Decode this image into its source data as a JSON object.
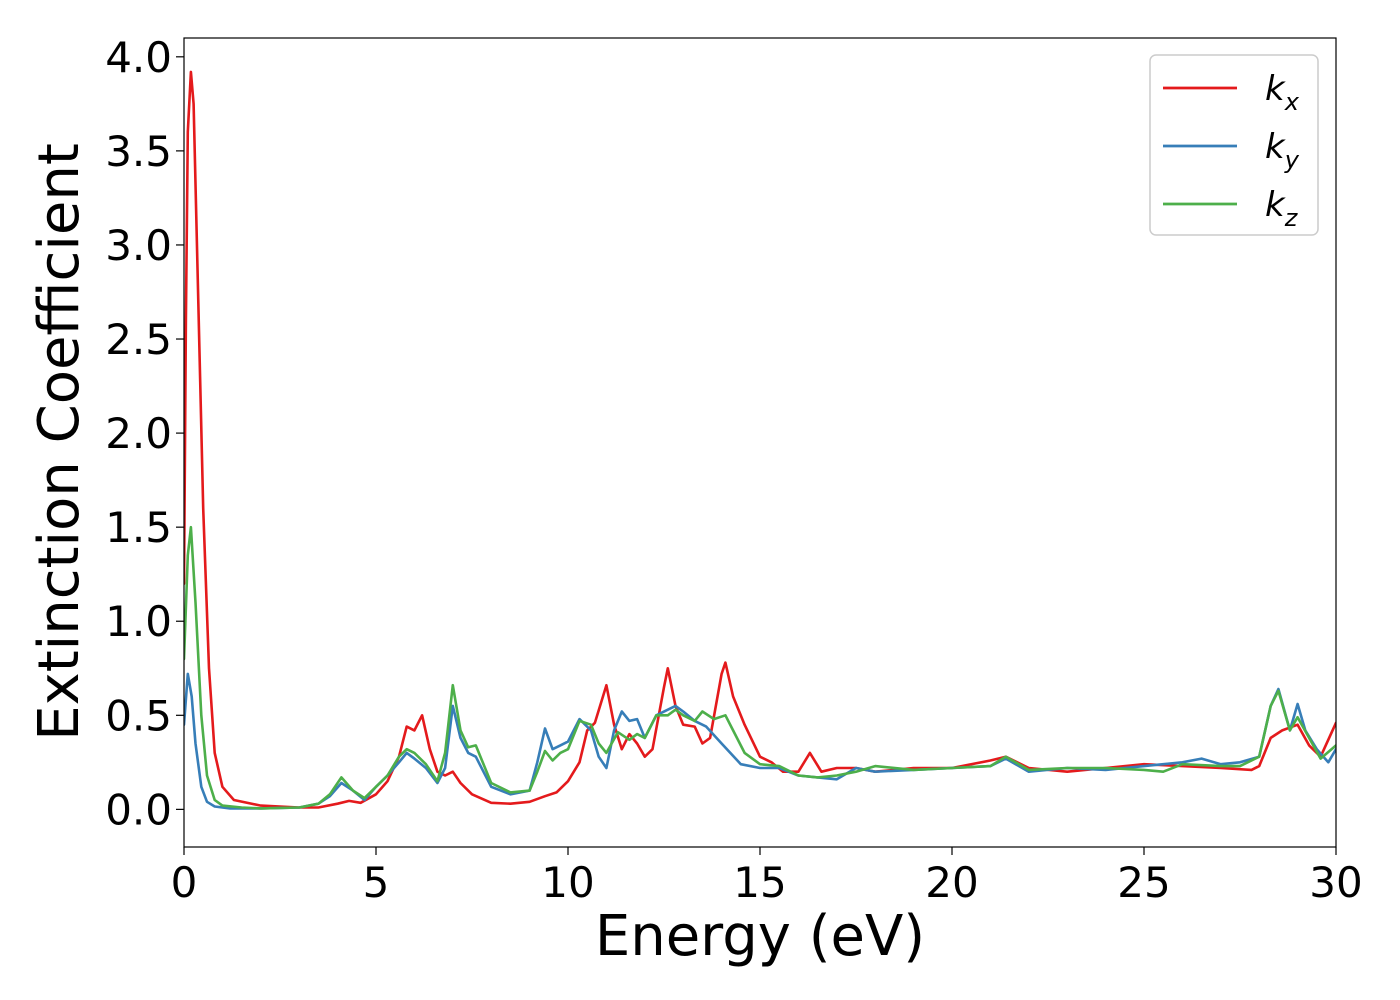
{
  "chart_data": {
    "type": "line",
    "title": "",
    "xlabel": "Energy (eV)",
    "ylabel": "Extinction Coefficient",
    "xlim": [
      0,
      30
    ],
    "ylim": [
      -0.2,
      4.1
    ],
    "xticks": [
      0,
      5,
      10,
      15,
      20,
      25,
      30
    ],
    "xtick_labels": [
      "0",
      "5",
      "10",
      "15",
      "20",
      "25",
      "30"
    ],
    "yticks": [
      0.0,
      0.5,
      1.0,
      1.5,
      2.0,
      2.5,
      3.0,
      3.5,
      4.0
    ],
    "ytick_labels": [
      "0.0",
      "0.5",
      "1.0",
      "1.5",
      "2.0",
      "2.5",
      "3.0",
      "3.5",
      "4.0"
    ],
    "grid": false,
    "legend_position": "top-right",
    "series": [
      {
        "name": "k",
        "subscript": "x",
        "color": "#e41a1c",
        "points": [
          [
            0,
            1.2
          ],
          [
            0.05,
            2.6
          ],
          [
            0.1,
            3.6
          ],
          [
            0.18,
            3.92
          ],
          [
            0.25,
            3.75
          ],
          [
            0.35,
            2.9
          ],
          [
            0.5,
            1.6
          ],
          [
            0.65,
            0.75
          ],
          [
            0.8,
            0.3
          ],
          [
            1.0,
            0.12
          ],
          [
            1.3,
            0.05
          ],
          [
            2.0,
            0.02
          ],
          [
            3.0,
            0.01
          ],
          [
            3.5,
            0.01
          ],
          [
            4.0,
            0.03
          ],
          [
            4.3,
            0.045
          ],
          [
            4.6,
            0.035
          ],
          [
            5.0,
            0.08
          ],
          [
            5.3,
            0.15
          ],
          [
            5.6,
            0.28
          ],
          [
            5.8,
            0.44
          ],
          [
            6.0,
            0.42
          ],
          [
            6.2,
            0.5
          ],
          [
            6.4,
            0.32
          ],
          [
            6.6,
            0.2
          ],
          [
            6.8,
            0.18
          ],
          [
            7.0,
            0.2
          ],
          [
            7.2,
            0.14
          ],
          [
            7.5,
            0.08
          ],
          [
            8.0,
            0.035
          ],
          [
            8.5,
            0.03
          ],
          [
            9.0,
            0.04
          ],
          [
            9.4,
            0.07
          ],
          [
            9.7,
            0.09
          ],
          [
            10.0,
            0.15
          ],
          [
            10.3,
            0.25
          ],
          [
            10.5,
            0.42
          ],
          [
            10.7,
            0.46
          ],
          [
            11.0,
            0.66
          ],
          [
            11.2,
            0.45
          ],
          [
            11.4,
            0.32
          ],
          [
            11.6,
            0.4
          ],
          [
            11.8,
            0.35
          ],
          [
            12.0,
            0.28
          ],
          [
            12.2,
            0.32
          ],
          [
            12.5,
            0.65
          ],
          [
            12.6,
            0.75
          ],
          [
            12.8,
            0.55
          ],
          [
            13.0,
            0.45
          ],
          [
            13.3,
            0.44
          ],
          [
            13.5,
            0.35
          ],
          [
            13.7,
            0.38
          ],
          [
            14.0,
            0.72
          ],
          [
            14.1,
            0.78
          ],
          [
            14.3,
            0.6
          ],
          [
            14.6,
            0.45
          ],
          [
            15.0,
            0.28
          ],
          [
            15.3,
            0.25
          ],
          [
            15.6,
            0.2
          ],
          [
            16.0,
            0.2
          ],
          [
            16.3,
            0.3
          ],
          [
            16.6,
            0.2
          ],
          [
            17.0,
            0.22
          ],
          [
            17.5,
            0.22
          ],
          [
            18.0,
            0.2
          ],
          [
            19.0,
            0.22
          ],
          [
            20.0,
            0.22
          ],
          [
            21.0,
            0.26
          ],
          [
            21.4,
            0.28
          ],
          [
            22.0,
            0.22
          ],
          [
            23.0,
            0.2
          ],
          [
            24.0,
            0.22
          ],
          [
            25.0,
            0.24
          ],
          [
            26.0,
            0.23
          ],
          [
            27.0,
            0.22
          ],
          [
            27.8,
            0.21
          ],
          [
            28.0,
            0.23
          ],
          [
            28.3,
            0.38
          ],
          [
            28.6,
            0.42
          ],
          [
            29.0,
            0.45
          ],
          [
            29.3,
            0.34
          ],
          [
            29.6,
            0.28
          ],
          [
            30.0,
            0.46
          ]
        ]
      },
      {
        "name": "k",
        "subscript": "y",
        "color": "#377eb8",
        "points": [
          [
            0,
            0.45
          ],
          [
            0.1,
            0.72
          ],
          [
            0.2,
            0.6
          ],
          [
            0.3,
            0.35
          ],
          [
            0.45,
            0.12
          ],
          [
            0.6,
            0.04
          ],
          [
            0.8,
            0.015
          ],
          [
            1.2,
            0.005
          ],
          [
            2.0,
            0.005
          ],
          [
            3.0,
            0.01
          ],
          [
            3.5,
            0.03
          ],
          [
            3.8,
            0.07
          ],
          [
            4.1,
            0.14
          ],
          [
            4.4,
            0.1
          ],
          [
            4.7,
            0.05
          ],
          [
            5.0,
            0.12
          ],
          [
            5.3,
            0.18
          ],
          [
            5.6,
            0.25
          ],
          [
            5.8,
            0.3
          ],
          [
            6.0,
            0.27
          ],
          [
            6.3,
            0.22
          ],
          [
            6.6,
            0.14
          ],
          [
            6.8,
            0.22
          ],
          [
            7.0,
            0.55
          ],
          [
            7.2,
            0.38
          ],
          [
            7.4,
            0.3
          ],
          [
            7.6,
            0.28
          ],
          [
            8.0,
            0.12
          ],
          [
            8.5,
            0.08
          ],
          [
            9.0,
            0.1
          ],
          [
            9.2,
            0.25
          ],
          [
            9.4,
            0.43
          ],
          [
            9.6,
            0.32
          ],
          [
            9.8,
            0.34
          ],
          [
            10.0,
            0.36
          ],
          [
            10.3,
            0.48
          ],
          [
            10.6,
            0.42
          ],
          [
            10.8,
            0.28
          ],
          [
            11.0,
            0.22
          ],
          [
            11.2,
            0.42
          ],
          [
            11.4,
            0.52
          ],
          [
            11.6,
            0.47
          ],
          [
            11.8,
            0.48
          ],
          [
            12.0,
            0.38
          ],
          [
            12.3,
            0.5
          ],
          [
            12.6,
            0.53
          ],
          [
            12.8,
            0.55
          ],
          [
            13.0,
            0.52
          ],
          [
            13.3,
            0.47
          ],
          [
            13.6,
            0.44
          ],
          [
            14.0,
            0.35
          ],
          [
            14.5,
            0.24
          ],
          [
            15.0,
            0.22
          ],
          [
            15.5,
            0.22
          ],
          [
            16.0,
            0.18
          ],
          [
            16.5,
            0.17
          ],
          [
            17.0,
            0.16
          ],
          [
            17.5,
            0.22
          ],
          [
            18.0,
            0.2
          ],
          [
            19.0,
            0.21
          ],
          [
            20.0,
            0.22
          ],
          [
            21.0,
            0.23
          ],
          [
            21.4,
            0.27
          ],
          [
            22.0,
            0.2
          ],
          [
            23.0,
            0.22
          ],
          [
            24.0,
            0.21
          ],
          [
            25.0,
            0.23
          ],
          [
            26.0,
            0.25
          ],
          [
            26.5,
            0.27
          ],
          [
            27.0,
            0.24
          ],
          [
            27.5,
            0.25
          ],
          [
            28.0,
            0.28
          ],
          [
            28.3,
            0.55
          ],
          [
            28.5,
            0.64
          ],
          [
            28.8,
            0.42
          ],
          [
            29.0,
            0.56
          ],
          [
            29.2,
            0.42
          ],
          [
            29.5,
            0.32
          ],
          [
            29.8,
            0.25
          ],
          [
            30.0,
            0.32
          ]
        ]
      },
      {
        "name": "k",
        "subscript": "z",
        "color": "#4daf4a",
        "points": [
          [
            0,
            0.8
          ],
          [
            0.1,
            1.35
          ],
          [
            0.18,
            1.5
          ],
          [
            0.3,
            1.1
          ],
          [
            0.45,
            0.5
          ],
          [
            0.6,
            0.18
          ],
          [
            0.8,
            0.05
          ],
          [
            1.0,
            0.02
          ],
          [
            1.5,
            0.01
          ],
          [
            2.0,
            0.005
          ],
          [
            3.0,
            0.01
          ],
          [
            3.5,
            0.03
          ],
          [
            3.8,
            0.08
          ],
          [
            4.1,
            0.17
          ],
          [
            4.4,
            0.1
          ],
          [
            4.7,
            0.06
          ],
          [
            5.0,
            0.12
          ],
          [
            5.3,
            0.18
          ],
          [
            5.6,
            0.28
          ],
          [
            5.8,
            0.32
          ],
          [
            6.0,
            0.3
          ],
          [
            6.3,
            0.24
          ],
          [
            6.6,
            0.15
          ],
          [
            6.8,
            0.3
          ],
          [
            7.0,
            0.66
          ],
          [
            7.2,
            0.42
          ],
          [
            7.4,
            0.33
          ],
          [
            7.6,
            0.34
          ],
          [
            8.0,
            0.14
          ],
          [
            8.5,
            0.09
          ],
          [
            9.0,
            0.1
          ],
          [
            9.2,
            0.2
          ],
          [
            9.4,
            0.31
          ],
          [
            9.6,
            0.26
          ],
          [
            9.8,
            0.3
          ],
          [
            10.0,
            0.32
          ],
          [
            10.3,
            0.47
          ],
          [
            10.6,
            0.45
          ],
          [
            10.8,
            0.35
          ],
          [
            11.0,
            0.3
          ],
          [
            11.3,
            0.41
          ],
          [
            11.6,
            0.37
          ],
          [
            11.8,
            0.4
          ],
          [
            12.0,
            0.38
          ],
          [
            12.3,
            0.5
          ],
          [
            12.6,
            0.5
          ],
          [
            12.8,
            0.53
          ],
          [
            13.0,
            0.5
          ],
          [
            13.3,
            0.47
          ],
          [
            13.5,
            0.52
          ],
          [
            13.8,
            0.48
          ],
          [
            14.1,
            0.5
          ],
          [
            14.3,
            0.42
          ],
          [
            14.6,
            0.3
          ],
          [
            15.0,
            0.24
          ],
          [
            15.5,
            0.23
          ],
          [
            16.0,
            0.18
          ],
          [
            16.5,
            0.17
          ],
          [
            17.0,
            0.18
          ],
          [
            17.5,
            0.2
          ],
          [
            18.0,
            0.23
          ],
          [
            19.0,
            0.21
          ],
          [
            20.0,
            0.22
          ],
          [
            21.0,
            0.23
          ],
          [
            21.4,
            0.28
          ],
          [
            22.0,
            0.21
          ],
          [
            23.0,
            0.22
          ],
          [
            24.0,
            0.22
          ],
          [
            25.0,
            0.21
          ],
          [
            25.5,
            0.2
          ],
          [
            26.0,
            0.24
          ],
          [
            27.0,
            0.23
          ],
          [
            27.5,
            0.23
          ],
          [
            28.0,
            0.28
          ],
          [
            28.3,
            0.55
          ],
          [
            28.5,
            0.63
          ],
          [
            28.8,
            0.42
          ],
          [
            29.0,
            0.49
          ],
          [
            29.3,
            0.38
          ],
          [
            29.6,
            0.27
          ],
          [
            30.0,
            0.34
          ]
        ]
      }
    ]
  }
}
